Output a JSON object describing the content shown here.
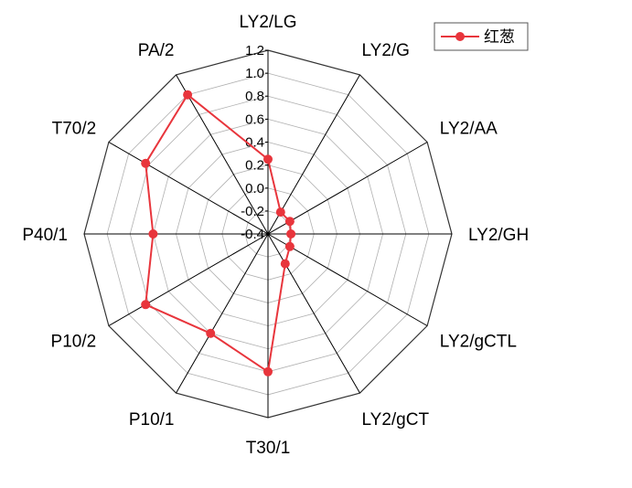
{
  "chart_data": {
    "type": "radar",
    "categories": [
      "LY2/LG",
      "LY2/G",
      "LY2/AA",
      "LY2/GH",
      "LY2/gCTL",
      "LY2/gCT",
      "T30/1",
      "P10/1",
      "P10/2",
      "P40/1",
      "T70/2",
      "PA/2"
    ],
    "series": [
      {
        "name": "红葱",
        "values": [
          0.25,
          -0.18,
          -0.18,
          -0.2,
          -0.18,
          -0.1,
          0.8,
          0.6,
          0.83,
          0.6,
          0.83,
          1.0
        ],
        "color": "#e8353c"
      }
    ],
    "ticks": [
      "-0.4",
      "-0.2",
      "0.0",
      "0.2",
      "0.4",
      "0.6",
      "0.8",
      "1.0",
      "1.2"
    ],
    "rlim": [
      -0.4,
      1.2
    ],
    "grid": true,
    "legend": "top-right",
    "colors": {
      "series": "#e8353c",
      "axis": "#000000",
      "grid": "#b0b0b0"
    }
  }
}
